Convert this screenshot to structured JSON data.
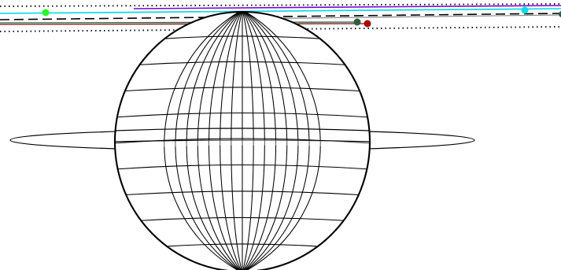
{
  "diagram": {
    "kind": "sphere-with-ring-and-lines",
    "description_visible_text": "",
    "colors": {
      "background": "#ffffff",
      "outline": "#000000",
      "cyan": "#00d8e8",
      "violet": "#7a00d6",
      "green_dot": "#22ff22",
      "teal_dot": "#00e0e8",
      "dark_green": "#2f5e3e",
      "dark_red": "#7a1010",
      "gray": "#8a8a8a"
    },
    "sphere": {
      "meridian_count": 16,
      "parallel_count": 9
    },
    "ring": {
      "style": "thin ellipse"
    },
    "lines": [
      {
        "name": "top-dotted-line",
        "style": "dotted",
        "color": "#000000"
      },
      {
        "name": "cyan-line",
        "style": "solid",
        "color": "#00d8e8"
      },
      {
        "name": "violet-line",
        "style": "solid",
        "color": "#7a00d6"
      },
      {
        "name": "black-dashed-line",
        "style": "dashed",
        "color": "#000000"
      },
      {
        "name": "gray-line",
        "style": "solid",
        "color": "#8a8a8a"
      },
      {
        "name": "dark-green-line",
        "style": "solid",
        "color": "#2f5e3e"
      },
      {
        "name": "dark-red-line",
        "style": "solid",
        "color": "#7a1010"
      },
      {
        "name": "lower-dotted-line",
        "style": "dotted",
        "color": "#000000"
      }
    ],
    "markers": [
      {
        "name": "green-marker",
        "color": "#22ff22"
      },
      {
        "name": "cyan-marker",
        "color": "#00e0e8"
      },
      {
        "name": "dark-green-marker",
        "color": "#2f5e3e"
      },
      {
        "name": "dark-red-marker",
        "color": "#b00000"
      }
    ]
  }
}
